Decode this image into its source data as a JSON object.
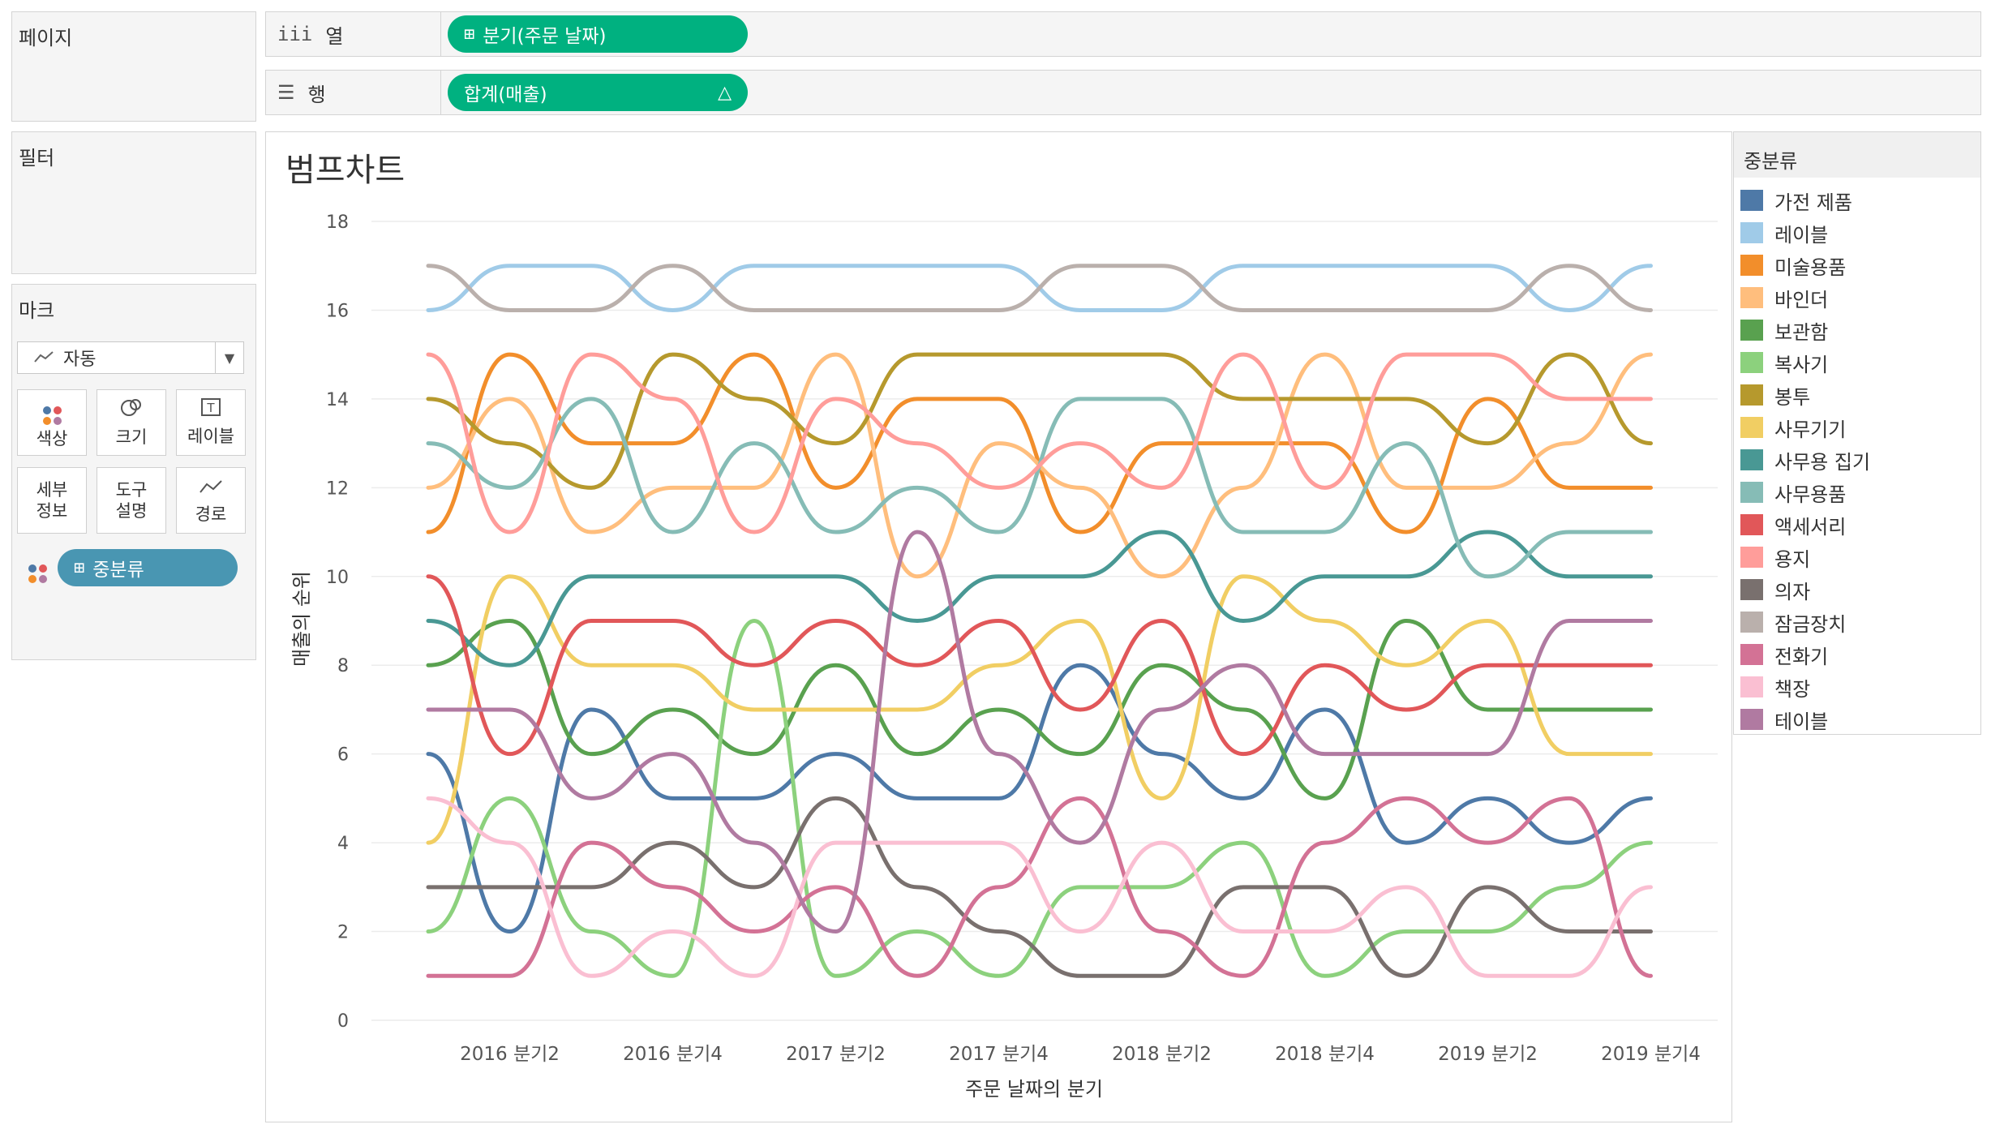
{
  "shelves": {
    "pages_label": "페이지",
    "columns_label": "열",
    "columns_pill": "분기(주문 날짜)",
    "rows_label": "행",
    "rows_pill": "합계(매출)",
    "rows_pill_icon": "delta-icon"
  },
  "filters": {
    "label": "필터"
  },
  "marks": {
    "label": "마크",
    "type_value": "자동",
    "buttons": [
      {
        "label": "색상",
        "icon": "color-dots-icon"
      },
      {
        "label": "크기",
        "icon": "size-icon"
      },
      {
        "label": "레이블",
        "icon": "label-t-icon"
      },
      {
        "label_line1": "세부",
        "label_line2": "정보",
        "icon": "detail-icon"
      },
      {
        "label_line1": "도구",
        "label_line2": "설명",
        "icon": "tooltip-icon"
      },
      {
        "label": "경로",
        "icon": "path-icon"
      }
    ],
    "color_pill": "중분류"
  },
  "legend": {
    "title": "중분류",
    "items": [
      {
        "label": "가전 제품",
        "color": "#4e79a7"
      },
      {
        "label": "레이블",
        "color": "#a0cbe8"
      },
      {
        "label": "미술용품",
        "color": "#f28e2b"
      },
      {
        "label": "바인더",
        "color": "#ffbe7d"
      },
      {
        "label": "보관함",
        "color": "#59a14f"
      },
      {
        "label": "복사기",
        "color": "#8cd17d"
      },
      {
        "label": "봉투",
        "color": "#b6992d"
      },
      {
        "label": "사무기기",
        "color": "#f1ce63"
      },
      {
        "label": "사무용 집기",
        "color": "#499894"
      },
      {
        "label": "사무용품",
        "color": "#86bcb6"
      },
      {
        "label": "액세서리",
        "color": "#e15759"
      },
      {
        "label": "용지",
        "color": "#ff9d9a"
      },
      {
        "label": "의자",
        "color": "#79706e"
      },
      {
        "label": "잠금장치",
        "color": "#bab0ac"
      },
      {
        "label": "전화기",
        "color": "#d37295"
      },
      {
        "label": "책장",
        "color": "#fabfd2"
      },
      {
        "label": "테이블",
        "color": "#b07aa1"
      }
    ]
  },
  "chart_data": {
    "type": "line",
    "title": "범프차트",
    "xlabel": "주문 날짜의 분기",
    "ylabel": "매출의 순위",
    "ylim": [
      0,
      18
    ],
    "y_ticks": [
      "0",
      "2",
      "4",
      "6",
      "8",
      "10",
      "12",
      "14",
      "16",
      "18"
    ],
    "x": [
      "2016 분기1",
      "2016 분기2",
      "2016 분기3",
      "2016 분기4",
      "2017 분기1",
      "2017 분기2",
      "2017 분기3",
      "2017 분기4",
      "2018 분기1",
      "2018 분기2",
      "2018 분기3",
      "2018 분기4",
      "2019 분기1",
      "2019 분기2",
      "2019 분기3",
      "2019 분기4"
    ],
    "x_tick_labels": [
      "2016 분기2",
      "2016 분기4",
      "2017 분기2",
      "2017 분기4",
      "2018 분기2",
      "2018 분기4",
      "2019 분기2",
      "2019 분기4"
    ],
    "grid": true,
    "legend_placement": "right",
    "series": [
      {
        "name": "가전 제품",
        "color": "#4e79a7",
        "values": [
          6,
          2,
          7,
          5,
          5,
          6,
          5,
          5,
          8,
          6,
          5,
          7,
          4,
          5,
          4,
          5
        ]
      },
      {
        "name": "레이블",
        "color": "#a0cbe8",
        "values": [
          16,
          17,
          17,
          16,
          17,
          17,
          17,
          17,
          16,
          16,
          17,
          17,
          17,
          17,
          16,
          17
        ]
      },
      {
        "name": "미술용품",
        "color": "#f28e2b",
        "values": [
          11,
          15,
          13,
          13,
          15,
          12,
          14,
          14,
          11,
          13,
          13,
          13,
          11,
          14,
          12,
          12
        ]
      },
      {
        "name": "바인더",
        "color": "#ffbe7d",
        "values": [
          12,
          14,
          11,
          12,
          12,
          15,
          10,
          13,
          12,
          10,
          12,
          15,
          12,
          12,
          13,
          15
        ]
      },
      {
        "name": "보관함",
        "color": "#59a14f",
        "values": [
          8,
          9,
          6,
          7,
          6,
          8,
          6,
          7,
          6,
          8,
          7,
          5,
          9,
          7,
          7,
          7
        ]
      },
      {
        "name": "복사기",
        "color": "#8cd17d",
        "values": [
          2,
          5,
          2,
          1,
          9,
          1,
          2,
          1,
          3,
          3,
          4,
          1,
          2,
          2,
          3,
          4
        ]
      },
      {
        "name": "봉투",
        "color": "#b6992d",
        "values": [
          14,
          13,
          12,
          15,
          14,
          13,
          15,
          15,
          15,
          15,
          14,
          14,
          14,
          13,
          15,
          13
        ]
      },
      {
        "name": "사무기기",
        "color": "#f1ce63",
        "values": [
          4,
          10,
          8,
          8,
          7,
          7,
          7,
          8,
          9,
          5,
          10,
          9,
          8,
          9,
          6,
          6
        ]
      },
      {
        "name": "사무용 집기",
        "color": "#499894",
        "values": [
          9,
          8,
          10,
          10,
          10,
          10,
          9,
          10,
          10,
          11,
          9,
          10,
          10,
          11,
          10,
          10
        ]
      },
      {
        "name": "사무용품",
        "color": "#86bcb6",
        "values": [
          13,
          12,
          14,
          11,
          13,
          11,
          12,
          11,
          14,
          14,
          11,
          11,
          13,
          10,
          11,
          11
        ]
      },
      {
        "name": "액세서리",
        "color": "#e15759",
        "values": [
          10,
          6,
          9,
          9,
          8,
          9,
          8,
          9,
          7,
          9,
          6,
          8,
          7,
          8,
          8,
          8
        ]
      },
      {
        "name": "용지",
        "color": "#ff9d9a",
        "values": [
          15,
          11,
          15,
          14,
          11,
          14,
          13,
          12,
          13,
          12,
          15,
          12,
          15,
          15,
          14,
          14
        ]
      },
      {
        "name": "의자",
        "color": "#79706e",
        "values": [
          3,
          3,
          3,
          4,
          3,
          5,
          3,
          2,
          1,
          1,
          3,
          3,
          1,
          3,
          2,
          2
        ]
      },
      {
        "name": "잠금장치",
        "color": "#bab0ac",
        "values": [
          17,
          16,
          16,
          17,
          16,
          16,
          16,
          16,
          17,
          17,
          16,
          16,
          16,
          16,
          17,
          16
        ]
      },
      {
        "name": "전화기",
        "color": "#d37295",
        "values": [
          1,
          1,
          4,
          3,
          2,
          3,
          1,
          3,
          5,
          2,
          1,
          4,
          5,
          4,
          5,
          1
        ]
      },
      {
        "name": "책장",
        "color": "#fabfd2",
        "values": [
          5,
          4,
          1,
          2,
          1,
          4,
          4,
          4,
          2,
          4,
          2,
          2,
          3,
          1,
          1,
          3
        ]
      },
      {
        "name": "테이블",
        "color": "#b07aa1",
        "values": [
          7,
          7,
          5,
          6,
          4,
          2,
          11,
          6,
          4,
          7,
          8,
          6,
          6,
          6,
          9,
          9
        ]
      }
    ]
  }
}
